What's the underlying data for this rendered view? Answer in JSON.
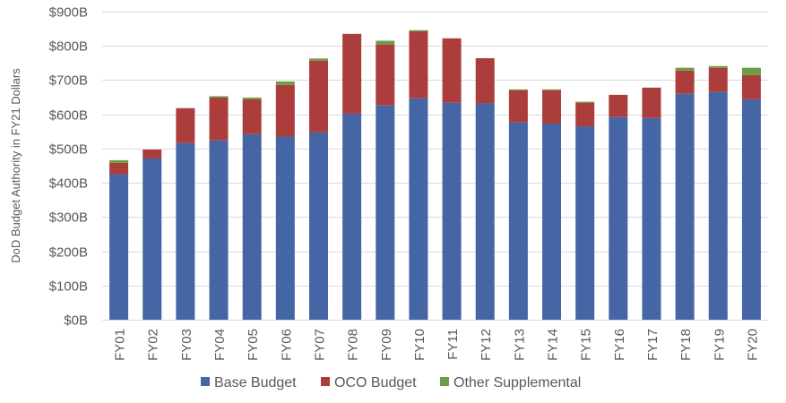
{
  "chart_data": {
    "type": "bar",
    "stacked": true,
    "title": "",
    "xlabel": "",
    "ylabel": "DoD Budget Authority in FY21 Dollars",
    "ylim": [
      0,
      900
    ],
    "y_ticks": [
      0,
      100,
      200,
      300,
      400,
      500,
      600,
      700,
      800,
      900
    ],
    "y_tick_labels": [
      "$0B",
      "$100B",
      "$200B",
      "$300B",
      "$400B",
      "$500B",
      "$600B",
      "$700B",
      "$800B",
      "$900B"
    ],
    "grid": true,
    "legend_position": "bottom",
    "categories": [
      "FY01",
      "FY02",
      "FY03",
      "FY04",
      "FY05",
      "FY06",
      "FY07",
      "FY08",
      "FY09",
      "FY10",
      "FY11",
      "FY12",
      "FY13",
      "FY14",
      "FY15",
      "FY16",
      "FY17",
      "FY18",
      "FY19",
      "FY20"
    ],
    "series": [
      {
        "name": "Base Budget",
        "color": "#4565a5",
        "values": [
          425,
          471,
          516,
          524,
          542,
          535,
          547,
          602,
          626,
          647,
          634,
          632,
          576,
          573,
          565,
          592,
          589,
          660,
          665,
          644
        ]
      },
      {
        "name": "OCO Budget",
        "color": "#ab3e3d",
        "values": [
          33,
          26,
          102,
          125,
          102,
          151,
          210,
          233,
          178,
          196,
          188,
          132,
          94,
          97,
          69,
          65,
          89,
          68,
          71,
          71
        ]
      },
      {
        "name": "Other Supplemental",
        "color": "#6a9d45",
        "values": [
          8,
          0,
          0,
          4,
          5,
          10,
          6,
          0,
          11,
          3,
          0,
          0,
          3,
          3,
          3,
          0,
          0,
          8,
          5,
          21
        ]
      }
    ]
  }
}
